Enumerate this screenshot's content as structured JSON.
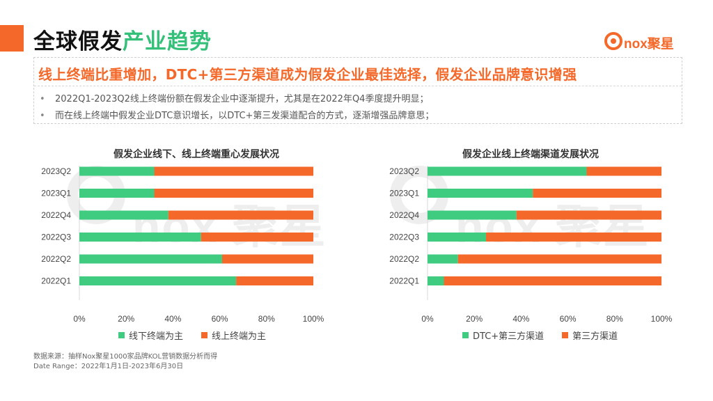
{
  "header": {
    "title_part1": "全球假发",
    "title_part2": "产业趋势",
    "logo_text": "nox聚星"
  },
  "summary": {
    "headline": "线上终端比重增加，DTC+第三方渠道成为假发企业最佳选择，假发企业品牌意识增强",
    "bullets": [
      "2022Q1-2023Q2线上终端份额在假发企业中逐渐提升，尤其是在2022年Q4季度提升明显；",
      "而在线上终端中假发企业DTC意识增长，以DTC+第三发渠道配合的方式，逐渐增强品牌意思；"
    ],
    "bullet_marker": "•"
  },
  "watermark_text": "nox 聚星",
  "colors": {
    "green": "#3fcc80",
    "orange": "#f4692a"
  },
  "chart_data": [
    {
      "type": "bar",
      "orientation": "horizontal-stacked-100",
      "title": "假发企业线下、线上终端重心发展状况",
      "categories": [
        "2023Q2",
        "2023Q1",
        "2022Q4",
        "2022Q3",
        "2022Q2",
        "2022Q1"
      ],
      "series": [
        {
          "name": "线下终端为主",
          "color": "#3fcc80",
          "values": [
            32,
            32,
            38,
            52,
            61,
            67
          ]
        },
        {
          "name": "线上终端为主",
          "color": "#f4692a",
          "values": [
            68,
            68,
            62,
            48,
            39,
            33
          ]
        }
      ],
      "xticks": [
        "0%",
        "20%",
        "40%",
        "60%",
        "80%",
        "100%"
      ],
      "xlim": [
        0,
        100
      ],
      "legend_position": "bottom"
    },
    {
      "type": "bar",
      "orientation": "horizontal-stacked-100",
      "title": "假发企业线上终端渠道发展状况",
      "categories": [
        "2023Q2",
        "2023Q1",
        "2022Q4",
        "2022Q3",
        "2022Q2",
        "2022Q1"
      ],
      "series": [
        {
          "name": "DTC+第三方渠道",
          "color": "#3fcc80",
          "values": [
            68,
            45,
            38,
            25,
            13,
            7
          ]
        },
        {
          "name": "第三方渠道",
          "color": "#f4692a",
          "values": [
            32,
            55,
            62,
            75,
            87,
            93
          ]
        }
      ],
      "xticks": [
        "0%",
        "20%",
        "40%",
        "60%",
        "80%",
        "100%"
      ],
      "xlim": [
        0,
        100
      ],
      "legend_position": "bottom"
    }
  ],
  "source": {
    "line1": "数据来源：抽样Nox聚星1000家品牌KOL营销数据分析而得",
    "line2": "Date Range：2022年1月1日-2023年6月30日"
  }
}
